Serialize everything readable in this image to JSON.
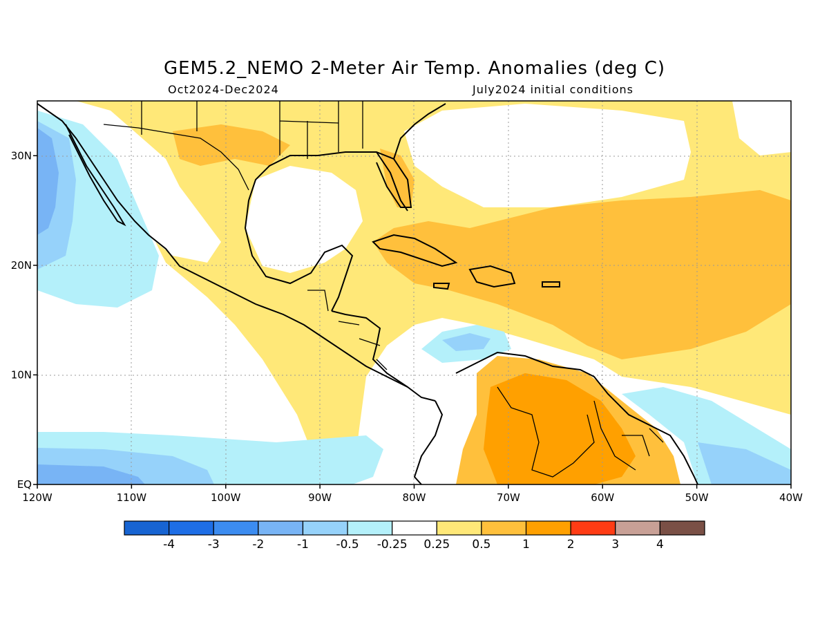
{
  "title": "GEM5.2_NEMO 2-Meter Air Temp. Anomalies (deg C)",
  "subtitle_left": "Oct2024-Dec2024",
  "subtitle_right": "July2024 initial conditions",
  "map": {
    "lon_range": [
      -120,
      -40
    ],
    "lat_range": [
      0,
      35
    ],
    "x_ticks": [
      "120W",
      "110W",
      "100W",
      "90W",
      "80W",
      "70W",
      "60W",
      "50W",
      "40W"
    ],
    "y_ticks": [
      "EQ",
      "10N",
      "20N",
      "30N"
    ],
    "grid": "dotted"
  },
  "colorbar": {
    "colors": [
      "#1764d2",
      "#1e6ee6",
      "#3c8cf0",
      "#78b4f5",
      "#96d2fa",
      "#b4f0fa",
      "#ffffff",
      "#ffe878",
      "#ffc03c",
      "#ffa000",
      "#ff3c14",
      "#c8a096",
      "#7a5046"
    ],
    "labels": [
      "-4",
      "-3",
      "-2",
      "-1",
      "-0.5",
      "-0.25",
      "0.25",
      "0.5",
      "1",
      "2",
      "3",
      "4"
    ]
  }
}
